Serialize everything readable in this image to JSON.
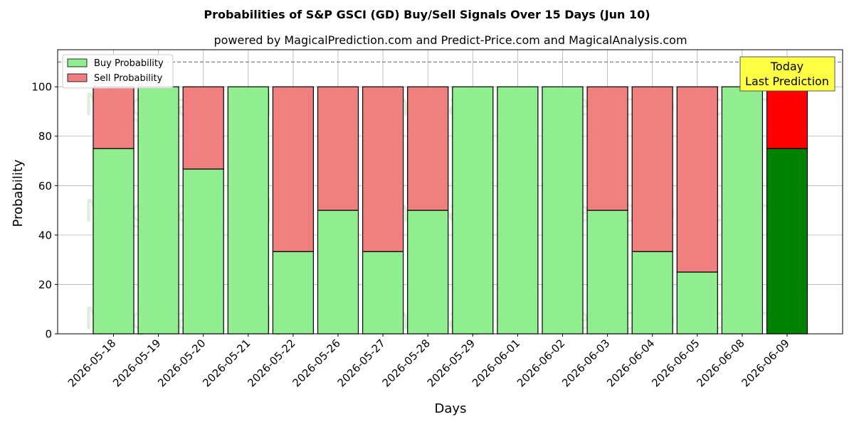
{
  "chart_data": {
    "type": "bar",
    "stacked": true,
    "title": "Probabilities of S&P GSCI (GD) Buy/Sell Signals Over 15 Days (Jun 10)",
    "subtitle": "powered by MagicalPrediction.com and Predict-Price.com and MagicalAnalysis.com",
    "xlabel": "Days",
    "ylabel": "Probability",
    "ylim": [
      0,
      115
    ],
    "yticks": [
      0,
      20,
      40,
      60,
      80,
      100
    ],
    "reference_line": 110,
    "grid": true,
    "legend_position": "top-left",
    "categories": [
      "2026-05-18",
      "2026-05-19",
      "2026-05-20",
      "2026-05-21",
      "2026-05-22",
      "2026-05-26",
      "2026-05-27",
      "2026-05-28",
      "2026-05-29",
      "2026-06-01",
      "2026-06-02",
      "2026-06-03",
      "2026-06-04",
      "2026-06-05",
      "2026-06-08",
      "2026-06-09"
    ],
    "series": [
      {
        "name": "Buy Probability",
        "color": "#90ee90",
        "highlight_color": "#008000",
        "values": [
          75,
          100,
          66.7,
          100,
          33.3,
          50,
          33.3,
          50,
          100,
          100,
          100,
          50,
          33.3,
          25,
          100,
          75
        ]
      },
      {
        "name": "Sell Probability",
        "color": "#f08080",
        "highlight_color": "#ff0000",
        "values": [
          25,
          0,
          33.3,
          0,
          66.7,
          50,
          66.7,
          50,
          0,
          0,
          0,
          50,
          66.7,
          75,
          0,
          25
        ]
      }
    ],
    "highlight_index": 15,
    "annotation": {
      "line1": "Today",
      "line2": "Last Prediction",
      "color": "#ffff44"
    },
    "watermarks": [
      "MagicalAnalysis.com",
      "MagicalPrediction.com"
    ]
  }
}
